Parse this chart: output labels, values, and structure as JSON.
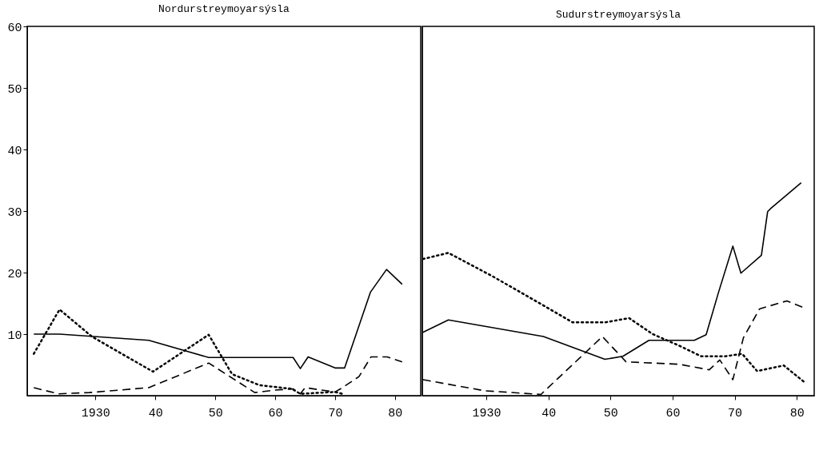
{
  "chart_data": [
    {
      "type": "line",
      "title": "Nordurstreymoyarsýsla",
      "xlim": [
        1918.6,
        1984.3
      ],
      "ylim": [
        0,
        60
      ],
      "yticks": [
        10,
        20,
        30,
        40,
        50,
        60
      ],
      "xticks": [
        {
          "value": 1930,
          "label": "1930"
        },
        {
          "value": 1940,
          "label": "40"
        },
        {
          "value": 1950,
          "label": "50"
        },
        {
          "value": 1960,
          "label": "60"
        },
        {
          "value": 1970,
          "label": "70"
        },
        {
          "value": 1980,
          "label": "80"
        }
      ],
      "grid": false,
      "series": [
        {
          "color": "#000000",
          "line_style": "solid",
          "x": [
            1919.7,
            1924,
            1938.9,
            1948.9,
            1963,
            1964.2,
            1965.5,
            1970,
            1971.6,
            1975.9,
            1978.6,
            1981.2
          ],
          "values": [
            10,
            10,
            9,
            6.2,
            6.2,
            4.4,
            6.3,
            4.5,
            4.5,
            16.8,
            20.5,
            18.1
          ]
        },
        {
          "color": "#000000",
          "line_style": "dashed",
          "x": [
            1919.7,
            1923.8,
            1929,
            1938.9,
            1948.9,
            1956.6,
            1960,
            1963,
            1964.2,
            1965,
            1970,
            1970.9,
            1974,
            1976,
            1978.7,
            1981.2
          ],
          "values": [
            1.3,
            0.3,
            0.5,
            1.3,
            5.3,
            0.5,
            0.9,
            1.1,
            0.3,
            1.3,
            0.6,
            1.1,
            3.1,
            6.3,
            6.3,
            5.5
          ]
        },
        {
          "color": "#000000",
          "line_style": "dotted",
          "x": [
            1919.7,
            1924,
            1929.4,
            1939.6,
            1948.9,
            1952.8,
            1957.4,
            1962.8,
            1964.2,
            1970,
            1971.6
          ],
          "values": [
            6.8,
            14,
            9.6,
            3.9,
            9.9,
            3.5,
            1.7,
            1.1,
            0.3,
            0.6,
            0.2
          ]
        }
      ]
    },
    {
      "type": "line",
      "title": "Sudurstreymoyarsýsla",
      "xlim": [
        1919.7,
        1982.8
      ],
      "ylim": [
        0,
        60
      ],
      "tick_labels": "x",
      "xticks": [
        {
          "value": 1930,
          "label": "1930"
        },
        {
          "value": 1940,
          "label": "40"
        },
        {
          "value": 1950,
          "label": "50"
        },
        {
          "value": 1960,
          "label": "60"
        },
        {
          "value": 1970,
          "label": "70"
        },
        {
          "value": 1980,
          "label": "80"
        }
      ],
      "grid": false,
      "series": [
        {
          "color": "#000000",
          "line_style": "solid",
          "x": [
            1919.8,
            1923.9,
            1939.2,
            1949.1,
            1952,
            1956.2,
            1963.5,
            1965.4,
            1967.4,
            1969.7,
            1971,
            1974.3,
            1975.3,
            1975.9,
            1980.7
          ],
          "values": [
            10.3,
            12.3,
            9.6,
            5.9,
            6.4,
            9,
            9,
            9.9,
            16.8,
            24.3,
            19.9,
            22.8,
            29.9,
            30.5,
            34.6
          ]
        },
        {
          "color": "#000000",
          "line_style": "dashed",
          "x": [
            1919.8,
            1929.7,
            1938.8,
            1948.7,
            1952.5,
            1961.1,
            1965.9,
            1967.6,
            1969.7,
            1971.4,
            1974,
            1978.4,
            1981.1
          ],
          "values": [
            2.6,
            0.8,
            0.2,
            9.6,
            5.5,
            5.1,
            4.2,
            5.8,
            2.6,
            9.4,
            14.1,
            15.4,
            14.3
          ]
        },
        {
          "color": "#000000",
          "line_style": "dotted",
          "x": [
            1919.8,
            1923.9,
            1931,
            1938.8,
            1943.9,
            1949.1,
            1953,
            1956.8,
            1961.1,
            1964.6,
            1968.5,
            1971.2,
            1973.6,
            1977.9,
            1981.1
          ],
          "values": [
            22.2,
            23.2,
            19.4,
            14.9,
            11.9,
            11.9,
            12.6,
            10,
            8.1,
            6.4,
            6.4,
            6.8,
            4,
            4.9,
            2.3
          ]
        }
      ]
    }
  ]
}
